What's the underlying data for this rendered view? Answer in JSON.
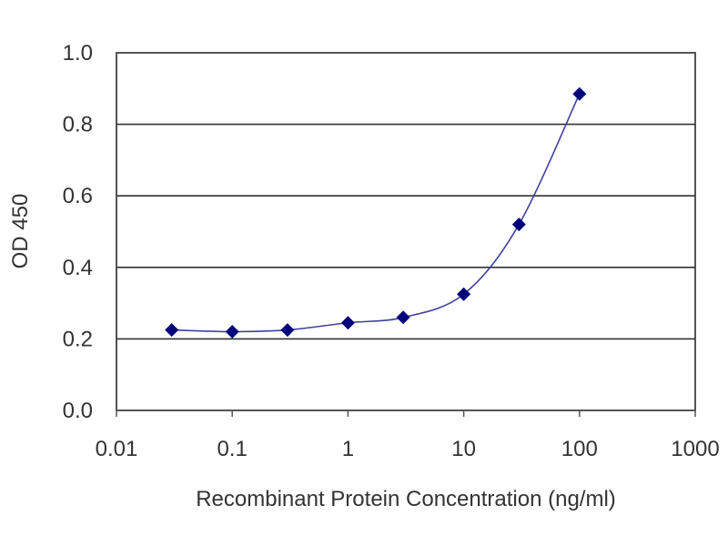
{
  "chart_data": {
    "type": "line",
    "title": "",
    "xlabel": "Recombinant Protein Concentration (ng/ml)",
    "ylabel": "OD 450",
    "x_scale": "log",
    "xlim": [
      0.01,
      1000
    ],
    "ylim": [
      0,
      1
    ],
    "x_ticks": [
      "0.01",
      "0.1",
      "1",
      "10",
      "100",
      "1000"
    ],
    "y_ticks": [
      "0.0",
      "0.2",
      "0.4",
      "0.6",
      "0.8",
      "1.0"
    ],
    "grid": "horizontal",
    "legend": "none",
    "series": [
      {
        "x": [
          0.03,
          0.1,
          0.3,
          1,
          3,
          10,
          30,
          100
        ],
        "y": [
          0.225,
          0.22,
          0.225,
          0.245,
          0.26,
          0.325,
          0.52,
          0.885
        ]
      }
    ],
    "colors": {
      "series": "#00007a",
      "plot_background": "#ffffff",
      "gridline": "#333333",
      "frame": "#555555"
    }
  }
}
